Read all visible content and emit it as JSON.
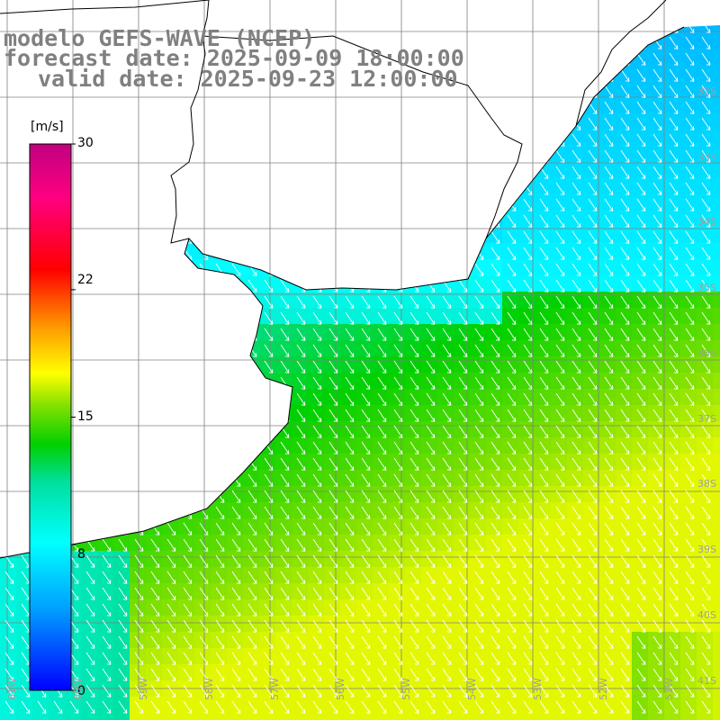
{
  "title": {
    "model": "modelo GEFS-WAVE (NCEP)",
    "forecast": "forecast date: 2025-09-09 18:00:00",
    "valid": "valid date: 2025-09-23 12:00:00"
  },
  "colorbar": {
    "unit": "[m/s]",
    "ticks": [
      "30",
      "22",
      "15",
      "8",
      "0"
    ],
    "tick_values": [
      30,
      22,
      15,
      8,
      0
    ],
    "range": [
      0,
      30
    ],
    "gradient": [
      "#0000ff",
      "#00a0ff",
      "#00ffff",
      "#00e0a0",
      "#00d000",
      "#80e000",
      "#ffff00",
      "#ffa000",
      "#ff0000",
      "#ff0080",
      "#c00080"
    ]
  },
  "map": {
    "lat_labels": [
      "32S",
      "33S",
      "34S",
      "35S",
      "36S",
      "37S",
      "38S",
      "39S",
      "40S",
      "41S"
    ],
    "lon_labels": [
      "61W",
      "60W",
      "59W",
      "58W",
      "57W",
      "56W",
      "55W",
      "54W",
      "53W",
      "52W",
      "51W"
    ],
    "land_color": "#ffffff",
    "grid_color": "#808080",
    "arrow_color": "#ffffff",
    "coast_color": "#000000",
    "wind_direction": "southeast",
    "wind_speed_range_ms": [
      6,
      16
    ]
  }
}
